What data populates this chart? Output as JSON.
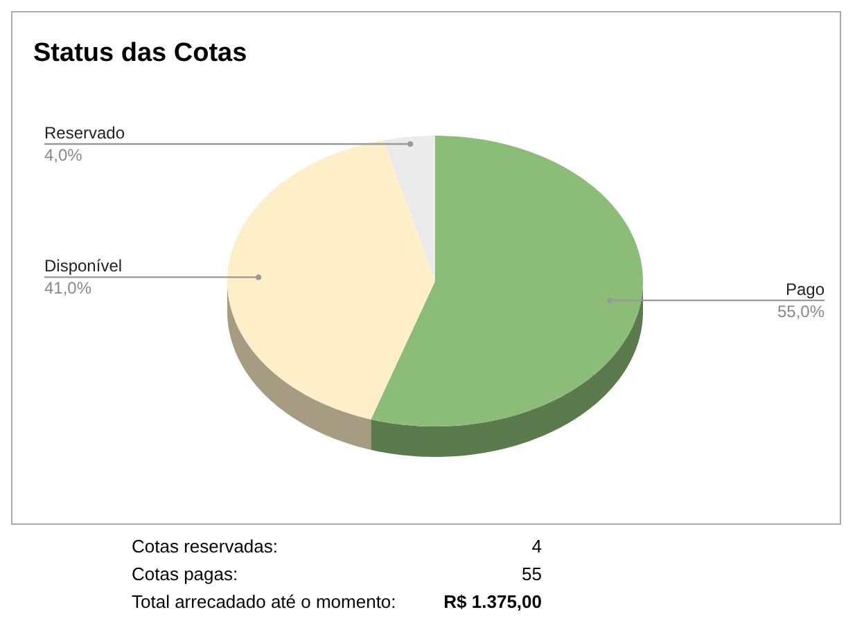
{
  "chart_data": {
    "type": "pie",
    "title": "Status das Cotas",
    "categories": [
      "Pago",
      "Disponível",
      "Reservado"
    ],
    "values": [
      55,
      41,
      4
    ],
    "colors": [
      "#8bbd78",
      "#ffefc8",
      "#ebebeb"
    ],
    "value_labels": [
      "55,0%",
      "41,0%",
      "4,0%"
    ],
    "annotations": [
      "Cotas reservadas:",
      "4",
      "Cotas pagas:",
      "55",
      "Total arrecadado até o momento:",
      "R$ 1.375,00"
    ]
  }
}
